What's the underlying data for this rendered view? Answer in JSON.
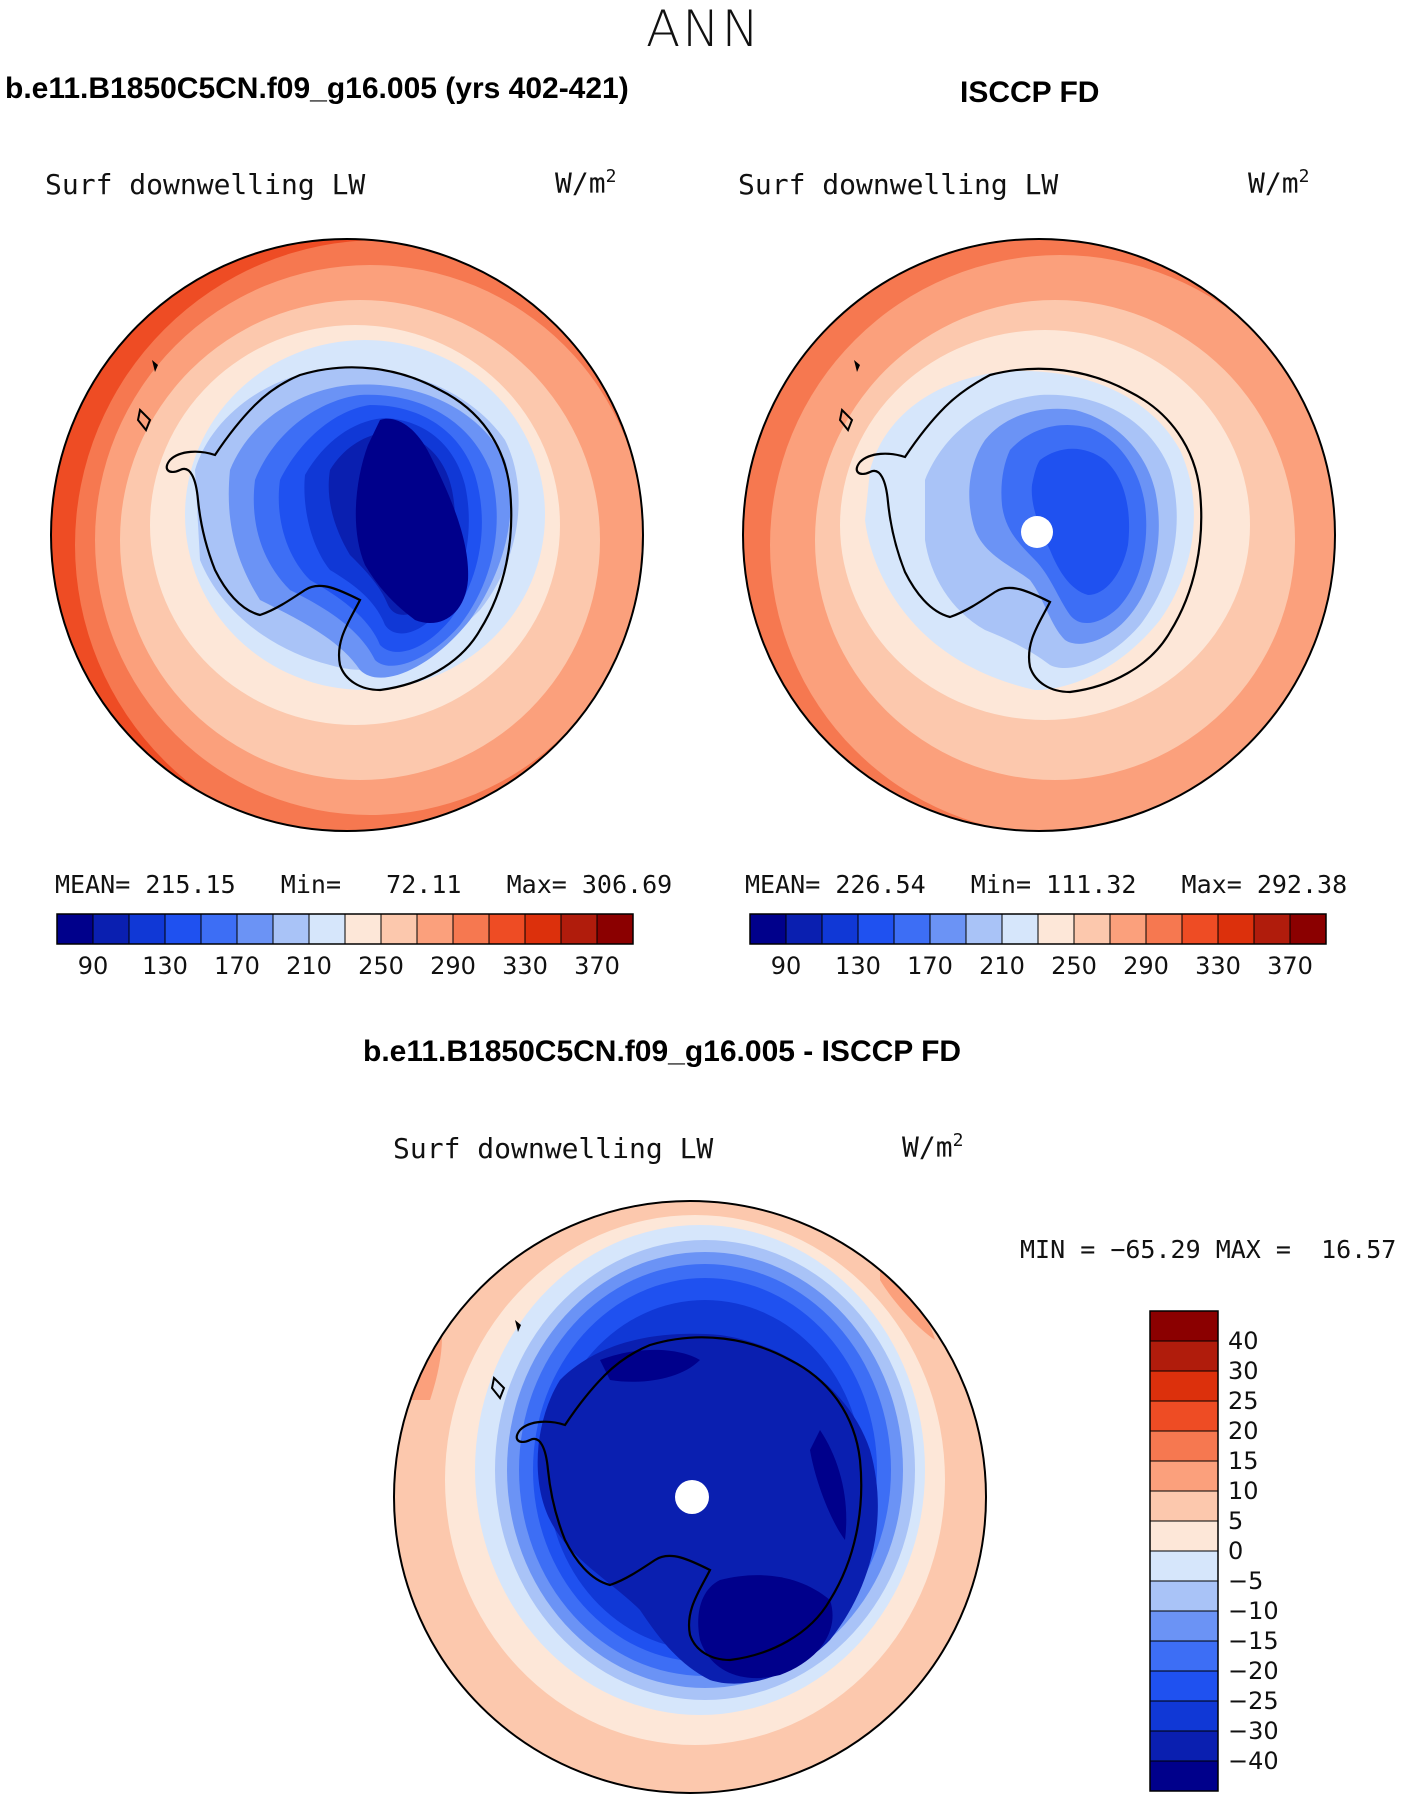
{
  "main_title": "ANN",
  "panels": [
    {
      "title": "b.e11.B1850C5CN.f09_g16.005 (yrs 402-421)",
      "field_label": "Surf downwelling LW",
      "units": "W/m",
      "units_exp": "2",
      "stats": {
        "mean_label": "MEAN=",
        "mean": "215.15",
        "min_label": "Min=",
        "min": "72.11",
        "max_label": "Max=",
        "max": "306.69"
      }
    },
    {
      "title": "ISCCP FD",
      "field_label": "Surf downwelling LW",
      "units": "W/m",
      "units_exp": "2",
      "stats": {
        "mean_label": "MEAN=",
        "mean": "226.54",
        "min_label": "Min=",
        "min": "111.32",
        "max_label": "Max=",
        "max": "292.38"
      }
    },
    {
      "title": "b.e11.B1850C5CN.f09_g16.005 - ISCCP FD",
      "field_label": "Surf downwelling LW",
      "units": "W/m",
      "units_exp": "2",
      "stats": {
        "min_label": "MIN =",
        "min": "−65.29",
        "max_label": "MAX =",
        "max": "16.57"
      }
    }
  ],
  "chart_data": [
    {
      "type": "heatmap",
      "projection": "south-polar-stereographic",
      "title": "b.e11.B1850C5CN.f09_g16.005 (yrs 402-421)",
      "variable": "Surf downwelling LW",
      "units": "W/m2",
      "mean": 215.15,
      "min": 72.11,
      "max": 306.69,
      "contour_levels": [
        90,
        110,
        130,
        150,
        170,
        190,
        210,
        230,
        250,
        270,
        290,
        310,
        330,
        350,
        370
      ],
      "colorbar_tick_labels": [
        "90",
        "130",
        "170",
        "210",
        "250",
        "290",
        "330",
        "370"
      ],
      "colorbar_orientation": "horizontal"
    },
    {
      "type": "heatmap",
      "projection": "south-polar-stereographic",
      "title": "ISCCP FD",
      "variable": "Surf downwelling LW",
      "units": "W/m2",
      "mean": 226.54,
      "min": 111.32,
      "max": 292.38,
      "contour_levels": [
        90,
        110,
        130,
        150,
        170,
        190,
        210,
        230,
        250,
        270,
        290,
        310,
        330,
        350,
        370
      ],
      "colorbar_tick_labels": [
        "90",
        "130",
        "170",
        "210",
        "250",
        "290",
        "330",
        "370"
      ],
      "colorbar_orientation": "horizontal"
    },
    {
      "type": "heatmap",
      "projection": "south-polar-stereographic",
      "title": "b.e11.B1850C5CN.f09_g16.005 - ISCCP FD",
      "variable": "Surf downwelling LW",
      "units": "W/m2",
      "min": -65.29,
      "max": 16.57,
      "contour_levels": [
        -40,
        -30,
        -25,
        -20,
        -15,
        -10,
        -5,
        0,
        5,
        10,
        15,
        20,
        25,
        30,
        40
      ],
      "colorbar_tick_labels": [
        "40",
        "30",
        "25",
        "20",
        "15",
        "10",
        "5",
        "0",
        "−5",
        "−10",
        "−15",
        "−20",
        "−25",
        "−30",
        "−40"
      ],
      "colorbar_orientation": "vertical"
    }
  ],
  "colors": {
    "sixteen_level_palette": [
      "#00008b",
      "#0a1fb0",
      "#1038d6",
      "#1f51f0",
      "#3d6ef5",
      "#6b93f5",
      "#a9c3f7",
      "#d6e6fb",
      "#fde7d8",
      "#fcc8ad",
      "#fba07c",
      "#f67850",
      "#ee4c24",
      "#dc300c",
      "#b01c0c",
      "#8b0000"
    ],
    "land_outline": "#000000",
    "pole_mask": "#ffffff"
  }
}
